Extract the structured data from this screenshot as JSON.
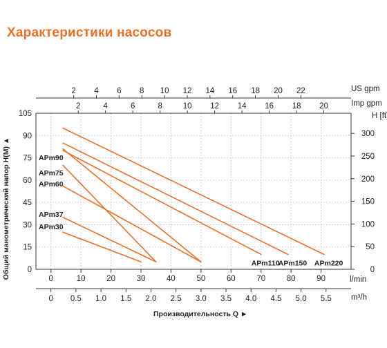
{
  "title": "Характеристики насосов",
  "chart_data": {
    "type": "line",
    "title": "Характеристики насосов",
    "xlabel": "Производительность Q ►",
    "ylabel": "Общий манометрический напор H(M) ▲",
    "x_unit_lmin": "l/min",
    "x_unit_m3h": "m³/h",
    "x_unit_usgpm": "US gpm",
    "x_unit_impgpm": "Imp gpm",
    "y_right_unit": "H [ft]",
    "xlim": [
      -5,
      100
    ],
    "ylim": [
      0,
      105
    ],
    "grid": true,
    "x_ticks_lmin": [
      "0",
      "10",
      "20",
      "30",
      "40",
      "50",
      "60",
      "70",
      "80",
      "90"
    ],
    "x_ticks_m3h": [
      "0",
      "0.5",
      "1.0",
      "1.5",
      "2.0",
      "2.5",
      "3.0",
      "3.5",
      "4.0",
      "4.5",
      "5.0",
      "5.5"
    ],
    "x_ticks_usgpm": [
      "2",
      "4",
      "6",
      "8",
      "10",
      "12",
      "14",
      "16",
      "18",
      "20",
      "22"
    ],
    "x_ticks_impgpm": [
      "2",
      "4",
      "6",
      "8",
      "10",
      "12",
      "14",
      "16",
      "18",
      "20"
    ],
    "y_ticks_m": [
      "0",
      "15",
      "30",
      "45",
      "60",
      "75",
      "90",
      "105"
    ],
    "y_ticks_ft": [
      "0",
      "50",
      "100",
      "150",
      "200",
      "250",
      "300"
    ],
    "series": [
      {
        "name": "APm30",
        "x": [
          4,
          30
        ],
        "y": [
          25,
          5
        ]
      },
      {
        "name": "APm37",
        "x": [
          4,
          35
        ],
        "y": [
          35,
          5
        ]
      },
      {
        "name": "APm60",
        "x": [
          4,
          50
        ],
        "y": [
          56,
          5
        ]
      },
      {
        "name": "APm75",
        "x": [
          4,
          35
        ],
        "y": [
          70,
          5
        ]
      },
      {
        "name": "APm90",
        "x": [
          4,
          50
        ],
        "y": [
          81,
          5
        ]
      },
      {
        "name": "APm110",
        "x": [
          4,
          70
        ],
        "y": [
          80,
          10
        ]
      },
      {
        "name": "APm150",
        "x": [
          4,
          79
        ],
        "y": [
          85,
          10
        ]
      },
      {
        "name": "APm220",
        "x": [
          4,
          91
        ],
        "y": [
          95,
          10
        ]
      }
    ],
    "colors": {
      "line": "#e8712a",
      "title": "#e8712a"
    }
  }
}
